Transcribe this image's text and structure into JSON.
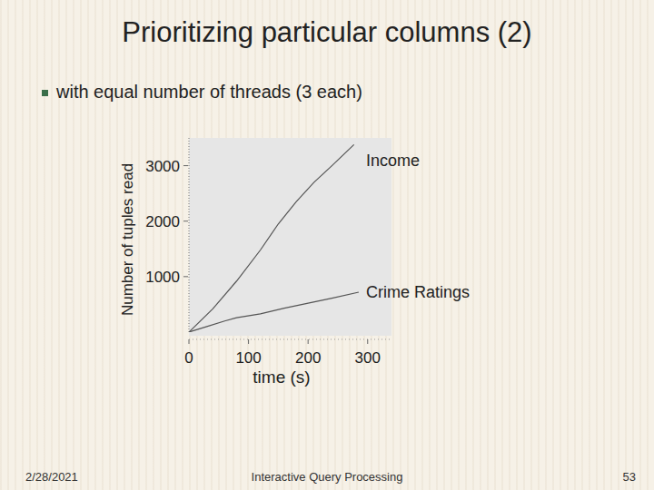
{
  "slide": {
    "title": "Prioritizing particular columns (2)",
    "bullet": "with equal number of threads (3 each)",
    "date": "2/28/2021",
    "footer": "Interactive Query Processing",
    "page": "53"
  },
  "chart_data": {
    "type": "line",
    "y_label": "Number of tuples read",
    "x_label": "time (s)",
    "xlim": [
      0,
      340
    ],
    "xticks": [
      0,
      100,
      200,
      300
    ],
    "ylim": [
      0,
      3500
    ],
    "yticks": [
      1000,
      2000,
      3000
    ],
    "series": [
      {
        "name": "Income",
        "color": "#555555",
        "x": [
          0,
          40,
          80,
          120,
          150,
          180,
          210,
          240,
          277
        ],
        "values": [
          0,
          420,
          920,
          1480,
          1950,
          2350,
          2700,
          3000,
          3380
        ]
      },
      {
        "name": "Crime Ratings",
        "color": "#555555",
        "x": [
          0,
          30,
          60,
          80,
          120,
          160,
          200,
          240,
          285
        ],
        "values": [
          0,
          100,
          200,
          260,
          330,
          430,
          520,
          610,
          720
        ]
      }
    ]
  }
}
